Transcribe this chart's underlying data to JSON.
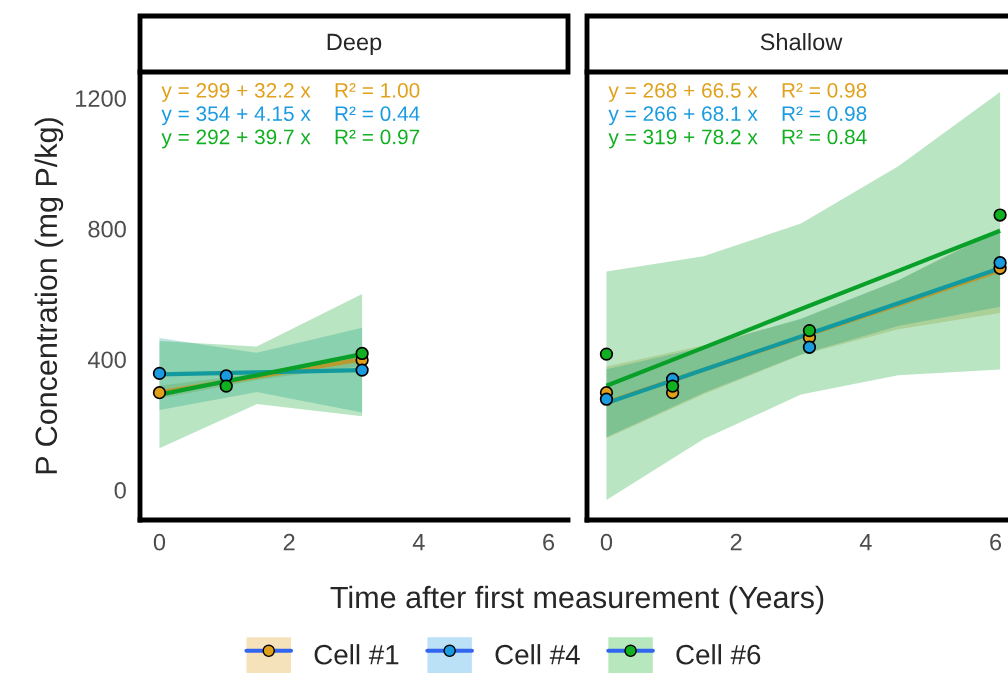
{
  "chart_data": [
    {
      "type": "scatter",
      "title": "Deep",
      "ylabel": "P Concentration (mg P/kg)",
      "xlabel": "Time after first measurement (Years)",
      "xlim": [
        -0.3,
        6.3
      ],
      "xticks": [
        0,
        2,
        4,
        6
      ],
      "ylim": [
        -92,
        1280
      ],
      "yticks": [
        0,
        400,
        800,
        1200
      ],
      "grid": false,
      "legend": "bottom",
      "marker": "circle",
      "annotations": [
        "y = 299 + 32.2 x    R² = 1.00",
        "y = 354 + 4.15 x    R² = 0.44",
        "y = 292 + 39.7 x    R² = 0.97"
      ],
      "series": [
        {
          "name": "Cell #1",
          "color": "#e0a01a",
          "x": [
            0,
            3.125
          ],
          "values": [
            298,
            398
          ]
        },
        {
          "name": "Cell #4",
          "color": "#1a9be0",
          "x": [
            0,
            1.03,
            3.125
          ],
          "values": [
            357,
            349,
            367
          ]
        },
        {
          "name": "Cell #6",
          "color": "#10b020",
          "x": [
            1.03,
            3.125
          ],
          "values": [
            318,
            418
          ]
        },
        {
          "type": "line",
          "marker": "none",
          "color": "#b89a30",
          "x": [
            0,
            1.5,
            3.125
          ],
          "values": [
            299,
            347,
            400
          ],
          "lower": [
            279,
            337,
            380
          ],
          "upper": [
            319,
            357,
            420
          ]
        },
        {
          "type": "line",
          "marker": "none",
          "color": "#129a9e",
          "x": [
            0,
            1.5,
            3.125
          ],
          "values": [
            354,
            360,
            367
          ],
          "lower": [
            245,
            300,
            237
          ],
          "upper": [
            465,
            420,
            497
          ]
        },
        {
          "type": "line",
          "marker": "none",
          "color": "#08a028",
          "x": [
            0,
            1.5,
            3.125
          ],
          "values": [
            292,
            351,
            416
          ],
          "lower": [
            128,
            263,
            226
          ],
          "upper": [
            456,
            439,
            600
          ]
        }
      ]
    },
    {
      "type": "scatter",
      "title": "Shallow",
      "tick_labels": "x",
      "xlim": [
        -0.3,
        6.3
      ],
      "xticks": [
        0,
        2,
        4,
        6
      ],
      "ylim": [
        -92,
        1280
      ],
      "yticks": [
        0,
        400,
        800,
        1200
      ],
      "grid": false,
      "marker": "circle",
      "annotations": [
        "y = 268 + 66.5 x    R² = 0.98",
        "y = 266 + 68.1 x    R² = 0.98",
        "y = 319 + 78.2 x    R² = 0.84"
      ],
      "series": [
        {
          "color": "#e0a01a",
          "x": [
            0,
            1.02,
            3.13,
            6.07
          ],
          "values": [
            298,
            298,
            467,
            679
          ]
        },
        {
          "color": "#1a9be0",
          "x": [
            0,
            1.02,
            3.13,
            6.07
          ],
          "values": [
            278,
            339,
            437,
            696
          ]
        },
        {
          "color": "#10b020",
          "x": [
            0,
            1.02,
            3.13,
            6.07
          ],
          "values": [
            416,
            318,
            488,
            842
          ]
        },
        {
          "type": "line",
          "marker": "none",
          "color": "#b89a30",
          "x": [
            0,
            1.5,
            3,
            4.5,
            6.07
          ],
          "values": [
            268,
            368,
            468,
            567,
            672
          ],
          "lower": [
            158,
            293,
            413,
            492,
            542
          ],
          "upper": [
            378,
            443,
            523,
            642,
            802
          ]
        },
        {
          "type": "line",
          "marker": "none",
          "color": "#129a9e",
          "x": [
            0,
            1.5,
            3,
            4.5,
            6.07
          ],
          "values": [
            266,
            368,
            470,
            572,
            679
          ],
          "lower": [
            162,
            298,
            415,
            502,
            561
          ],
          "upper": [
            370,
            438,
            525,
            642,
            797
          ]
        },
        {
          "type": "line",
          "marker": "none",
          "color": "#08a028",
          "x": [
            0,
            1.5,
            3,
            4.5,
            6.07
          ],
          "values": [
            319,
            436,
            554,
            671,
            794
          ],
          "lower": [
            -31,
            156,
            292,
            351,
            369
          ],
          "upper": [
            669,
            716,
            816,
            991,
            1219
          ]
        }
      ]
    }
  ]
}
